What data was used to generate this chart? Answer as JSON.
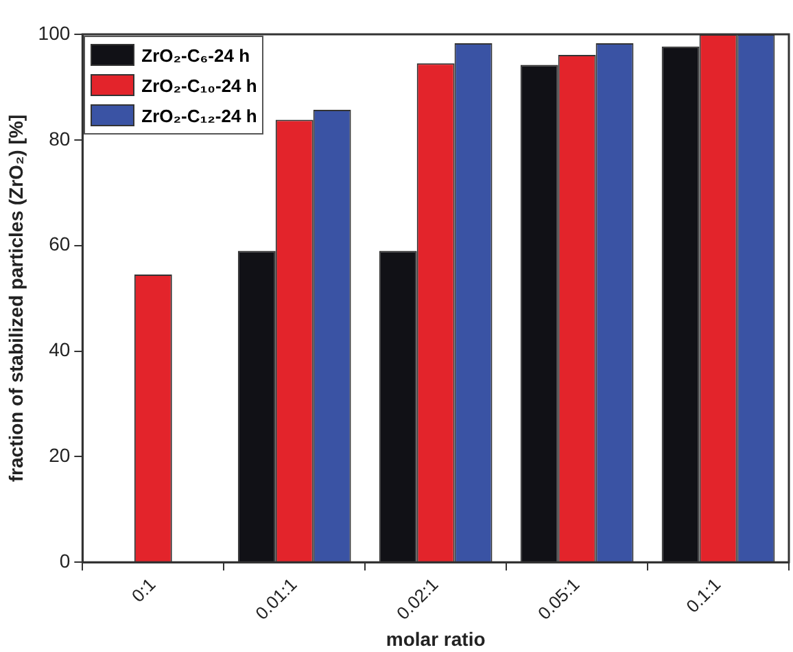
{
  "chart_data": {
    "type": "bar",
    "xlabel": "molar ratio",
    "ylabel": "fraction of stabilized particles (ZrO₂) [%]",
    "categories": [
      "0:1",
      "0.01:1",
      "0.02:1",
      "0.05:1",
      "0.1:1"
    ],
    "series": [
      {
        "name": "ZrO₂-C₆-24 h",
        "color": "#111116",
        "values": [
          0,
          59,
          59,
          94.2,
          97.7
        ]
      },
      {
        "name": "ZrO₂-C₁₀-24 h",
        "color": "#e3242b",
        "values": [
          54.5,
          83.8,
          94.5,
          96.1,
          100
        ]
      },
      {
        "name": "ZrO₂-C₁₂-24 h",
        "color": "#3a53a4",
        "values": [
          0,
          85.7,
          98.3,
          98.3,
          100
        ]
      }
    ],
    "ylim": [
      0,
      100
    ],
    "yticks": [
      0,
      20,
      40,
      60,
      80,
      100
    ],
    "legend": "top left"
  }
}
